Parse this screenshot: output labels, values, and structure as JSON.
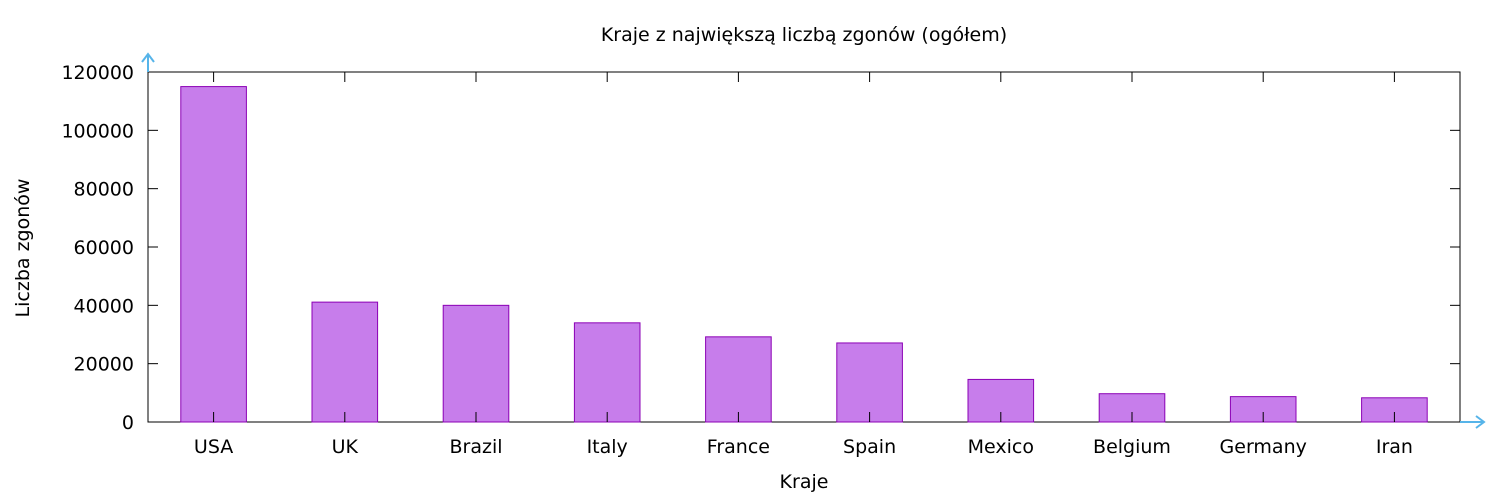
{
  "chart_data": {
    "type": "bar",
    "title": "Kraje z największą liczbą zgonów (ogółem)",
    "xlabel": "Kraje",
    "ylabel": "Liczba zgonów",
    "categories": [
      "USA",
      "UK",
      "Brazil",
      "Italy",
      "France",
      "Spain",
      "Mexico",
      "Belgium",
      "Germany",
      "Iran"
    ],
    "series": [
      {
        "values": [
          115000,
          41100,
          40000,
          34000,
          29200,
          27100,
          14600,
          9700,
          8700,
          8300
        ]
      }
    ],
    "ylim": [
      0,
      120000
    ],
    "yticks": [
      0,
      20000,
      40000,
      60000,
      80000,
      100000,
      120000
    ],
    "grid": false,
    "legend": "none",
    "colors": {
      "bar_fill": "#c77deb",
      "bar_stroke": "#8b00b5",
      "axis_arrow": "#56b4e9",
      "frame": "#000000"
    }
  }
}
